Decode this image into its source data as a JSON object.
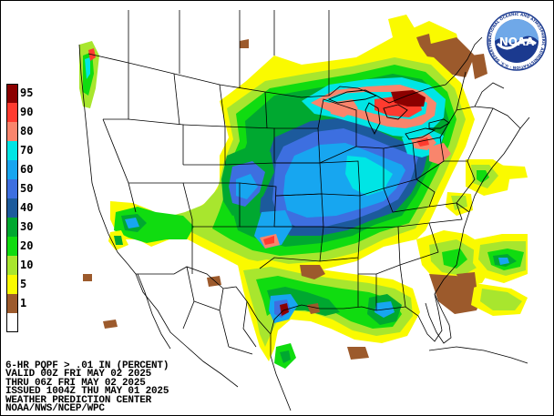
{
  "product": {
    "caption_lines": [
      "6-HR PQPF > .01 IN (PERCENT)",
      "VALID 00Z FRI MAY 02 2025",
      "THRU 06Z FRI MAY 02 2025",
      "ISSUED 1004Z THU MAY 01 2025",
      "WEATHER PREDICTION CENTER",
      "NOAA/NWS/NCEP/WPC"
    ]
  },
  "logo": {
    "text": "NOAA",
    "ring_text": "NATIONAL OCEANIC AND ATMOSPHERIC ADMINISTRATION · U.S. DEPARTMENT OF COMMERCE ·",
    "icon": "noaa-seal"
  },
  "legend": {
    "items": [
      {
        "label": "95",
        "color": "#8b0000"
      },
      {
        "label": "90",
        "color": "#ff3b2f"
      },
      {
        "label": "80",
        "color": "#f9856c"
      },
      {
        "label": "70",
        "color": "#00e5e5"
      },
      {
        "label": "60",
        "color": "#17a6f0"
      },
      {
        "label": "50",
        "color": "#3d6fe0"
      },
      {
        "label": "40",
        "color": "#1c5a9c"
      },
      {
        "label": "30",
        "color": "#00a830"
      },
      {
        "label": "20",
        "color": "#10dc10"
      },
      {
        "label": "10",
        "color": "#a8e62e"
      },
      {
        "label": "5",
        "color": "#fafa00"
      },
      {
        "label": "1",
        "color": "#9c5a2c"
      },
      {
        "label": "",
        "color": "#ffffff"
      }
    ]
  }
}
